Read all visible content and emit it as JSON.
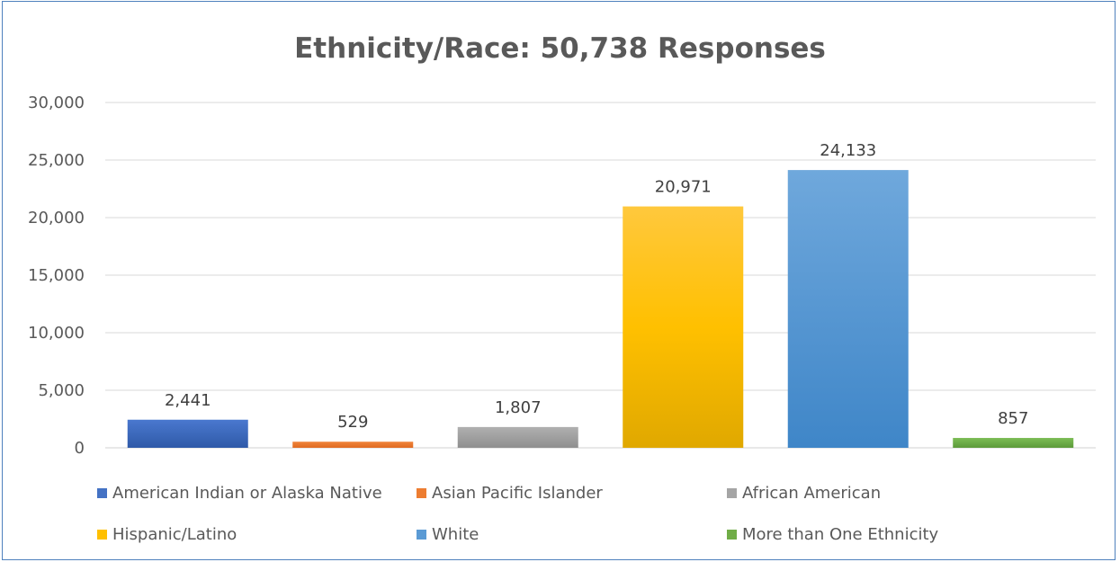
{
  "chart_data": {
    "type": "bar",
    "title": "Ethnicity/Race: 50,738 Responses",
    "xlabel": "",
    "ylabel": "",
    "ylim": [
      0,
      30000
    ],
    "yticks": [
      "0",
      "5,000",
      "10,000",
      "15,000",
      "20,000",
      "25,000",
      "30,000"
    ],
    "grid": true,
    "legend_position": "bottom",
    "categories": [
      "American Indian or Alaska Native",
      "Asian Pacific Islander",
      "African American",
      "Hispanic/Latino",
      "White",
      "More than One Ethnicity"
    ],
    "values": [
      2441,
      529,
      1807,
      20971,
      24133,
      857
    ],
    "value_labels": [
      "2,441",
      "529",
      "1,807",
      "20,971",
      "24,133",
      "857"
    ],
    "colors": [
      "#4472c4",
      "#ed7d31",
      "#a5a5a5",
      "#ffc000",
      "#5b9bd5",
      "#70ad47"
    ]
  }
}
